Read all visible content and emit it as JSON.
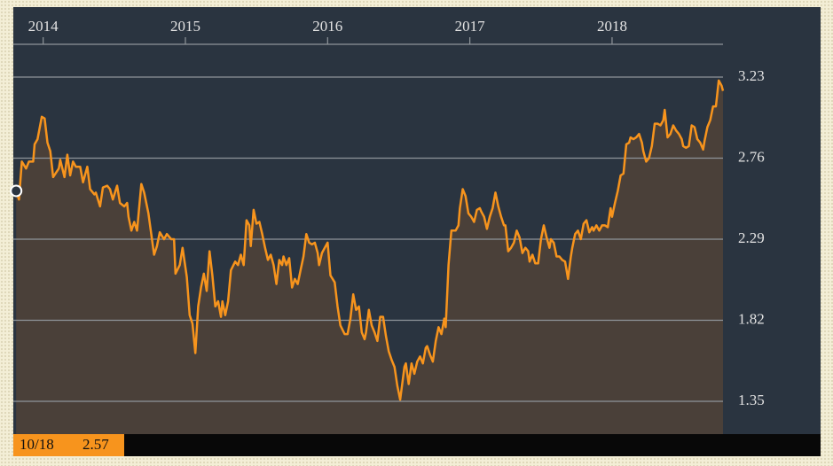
{
  "chart_data": {
    "type": "area-line",
    "x": [
      2013.81,
      2013.83,
      2013.85,
      2013.88,
      2013.9,
      2013.93,
      2013.94,
      2013.96,
      2013.99,
      2014.01,
      2014.03,
      2014.05,
      2014.07,
      2014.11,
      2014.12,
      2014.15,
      2014.17,
      2014.19,
      2014.21,
      2014.23,
      2014.26,
      2014.28,
      2014.31,
      2014.33,
      2014.36,
      2014.37,
      2014.4,
      2014.42,
      2014.45,
      2014.47,
      2014.49,
      2014.52,
      2014.54,
      2014.57,
      2014.59,
      2014.6,
      2014.62,
      2014.64,
      2014.66,
      2014.69,
      2014.71,
      2014.74,
      2014.76,
      2014.78,
      2014.8,
      2014.82,
      2014.85,
      2014.87,
      2014.9,
      2014.92,
      2014.93,
      2014.96,
      2014.98,
      2015.01,
      2015.03,
      2015.05,
      2015.07,
      2015.09,
      2015.11,
      2015.13,
      2015.15,
      2015.17,
      2015.19,
      2015.21,
      2015.23,
      2015.25,
      2015.26,
      2015.28,
      2015.3,
      2015.32,
      2015.35,
      2015.37,
      2015.39,
      2015.41,
      2015.43,
      2015.45,
      2015.46,
      2015.48,
      2015.5,
      2015.52,
      2015.54,
      2015.56,
      2015.58,
      2015.6,
      2015.62,
      2015.64,
      2015.66,
      2015.68,
      2015.69,
      2015.71,
      2015.73,
      2015.75,
      2015.77,
      2015.79,
      2015.81,
      2015.83,
      2015.85,
      2015.87,
      2015.89,
      2015.91,
      2015.93,
      2015.94,
      2015.96,
      2015.98,
      2016.0,
      2016.02,
      2016.05,
      2016.07,
      2016.09,
      2016.12,
      2016.14,
      2016.16,
      2016.18,
      2016.2,
      2016.22,
      2016.24,
      2016.26,
      2016.27,
      2016.29,
      2016.31,
      2016.33,
      2016.35,
      2016.37,
      2016.39,
      2016.41,
      2016.43,
      2016.45,
      2016.47,
      2016.49,
      2016.51,
      2016.54,
      2016.55,
      2016.57,
      2016.59,
      2016.61,
      2016.63,
      2016.65,
      2016.67,
      2016.69,
      2016.7,
      2016.72,
      2016.74,
      2016.76,
      2016.78,
      2016.8,
      2016.82,
      2016.83,
      2016.85,
      2016.87,
      2016.9,
      2016.92,
      2016.93,
      2016.95,
      2016.97,
      2016.99,
      2017.01,
      2017.03,
      2017.05,
      2017.07,
      2017.08,
      2017.1,
      2017.12,
      2017.14,
      2017.16,
      2017.18,
      2017.2,
      2017.22,
      2017.24,
      2017.25,
      2017.27,
      2017.29,
      2017.31,
      2017.33,
      2017.35,
      2017.37,
      2017.39,
      2017.41,
      2017.42,
      2017.44,
      2017.46,
      2017.48,
      2017.5,
      2017.52,
      2017.54,
      2017.56,
      2017.57,
      2017.59,
      2017.61,
      2017.63,
      2017.65,
      2017.67,
      2017.69,
      2017.71,
      2017.72,
      2017.74,
      2017.76,
      2017.78,
      2017.8,
      2017.82,
      2017.84,
      2017.86,
      2017.87,
      2017.89,
      2017.91,
      2017.93,
      2017.95,
      2017.97,
      2017.99,
      2018.0,
      2018.02,
      2018.04,
      2018.06,
      2018.08,
      2018.1,
      2018.12,
      2018.13,
      2018.15,
      2018.17,
      2018.19,
      2018.21,
      2018.22,
      2018.24,
      2018.26,
      2018.28,
      2018.3,
      2018.32,
      2018.34,
      2018.36,
      2018.37,
      2018.39,
      2018.41,
      2018.43,
      2018.45,
      2018.47,
      2018.49,
      2018.5,
      2018.52,
      2018.54,
      2018.56,
      2018.58,
      2018.6,
      2018.62,
      2018.64,
      2018.65,
      2018.67,
      2018.69,
      2018.71,
      2018.73,
      2018.75,
      2018.77,
      2018.78
    ],
    "values": [
      2.57,
      2.52,
      2.74,
      2.7,
      2.74,
      2.74,
      2.84,
      2.87,
      3.0,
      2.99,
      2.85,
      2.8,
      2.65,
      2.7,
      2.75,
      2.65,
      2.78,
      2.66,
      2.74,
      2.71,
      2.71,
      2.62,
      2.71,
      2.58,
      2.55,
      2.56,
      2.48,
      2.59,
      2.6,
      2.58,
      2.52,
      2.6,
      2.5,
      2.48,
      2.5,
      2.42,
      2.34,
      2.39,
      2.34,
      2.61,
      2.56,
      2.44,
      2.32,
      2.2,
      2.25,
      2.33,
      2.29,
      2.32,
      2.29,
      2.29,
      2.09,
      2.14,
      2.24,
      2.07,
      1.85,
      1.8,
      1.63,
      1.9,
      2.01,
      2.09,
      1.99,
      2.22,
      2.08,
      1.9,
      1.93,
      1.84,
      1.93,
      1.85,
      1.93,
      2.11,
      2.16,
      2.14,
      2.2,
      2.14,
      2.4,
      2.37,
      2.25,
      2.46,
      2.38,
      2.39,
      2.32,
      2.24,
      2.17,
      2.2,
      2.14,
      2.03,
      2.17,
      2.14,
      2.19,
      2.14,
      2.18,
      2.01,
      2.06,
      2.03,
      2.11,
      2.19,
      2.32,
      2.27,
      2.26,
      2.27,
      2.21,
      2.14,
      2.21,
      2.24,
      2.27,
      2.08,
      2.04,
      1.9,
      1.79,
      1.74,
      1.74,
      1.83,
      1.97,
      1.88,
      1.9,
      1.75,
      1.71,
      1.75,
      1.88,
      1.79,
      1.75,
      1.7,
      1.84,
      1.84,
      1.73,
      1.64,
      1.59,
      1.55,
      1.44,
      1.36,
      1.55,
      1.57,
      1.45,
      1.57,
      1.51,
      1.58,
      1.61,
      1.57,
      1.66,
      1.67,
      1.62,
      1.58,
      1.7,
      1.78,
      1.74,
      1.83,
      1.78,
      2.14,
      2.34,
      2.34,
      2.37,
      2.47,
      2.58,
      2.54,
      2.44,
      2.42,
      2.39,
      2.46,
      2.47,
      2.45,
      2.42,
      2.35,
      2.42,
      2.47,
      2.56,
      2.48,
      2.42,
      2.37,
      2.37,
      2.22,
      2.24,
      2.27,
      2.34,
      2.3,
      2.21,
      2.24,
      2.22,
      2.16,
      2.2,
      2.15,
      2.15,
      2.29,
      2.37,
      2.3,
      2.24,
      2.29,
      2.27,
      2.19,
      2.19,
      2.17,
      2.16,
      2.06,
      2.19,
      2.24,
      2.32,
      2.34,
      2.29,
      2.38,
      2.4,
      2.33,
      2.36,
      2.34,
      2.37,
      2.34,
      2.37,
      2.37,
      2.36,
      2.47,
      2.42,
      2.5,
      2.57,
      2.66,
      2.67,
      2.84,
      2.85,
      2.88,
      2.87,
      2.88,
      2.9,
      2.85,
      2.8,
      2.74,
      2.76,
      2.83,
      2.96,
      2.96,
      2.95,
      2.98,
      3.04,
      2.88,
      2.9,
      2.95,
      2.92,
      2.9,
      2.87,
      2.83,
      2.82,
      2.83,
      2.95,
      2.94,
      2.87,
      2.85,
      2.81,
      2.86,
      2.94,
      2.98,
      3.06,
      3.06,
      3.21,
      3.18,
      3.15
    ],
    "color": "#f7941d",
    "fill": "#4a4039",
    "xlim": [
      2013.79,
      2018.78
    ],
    "xticks": [
      2014,
      2015,
      2016,
      2017,
      2018
    ],
    "ylim": [
      1.16,
      3.42
    ],
    "yticks": [
      1.35,
      1.82,
      2.29,
      2.76,
      3.23
    ],
    "grid": true,
    "tooltip": {
      "date": "10/18",
      "value": 2.57
    }
  }
}
